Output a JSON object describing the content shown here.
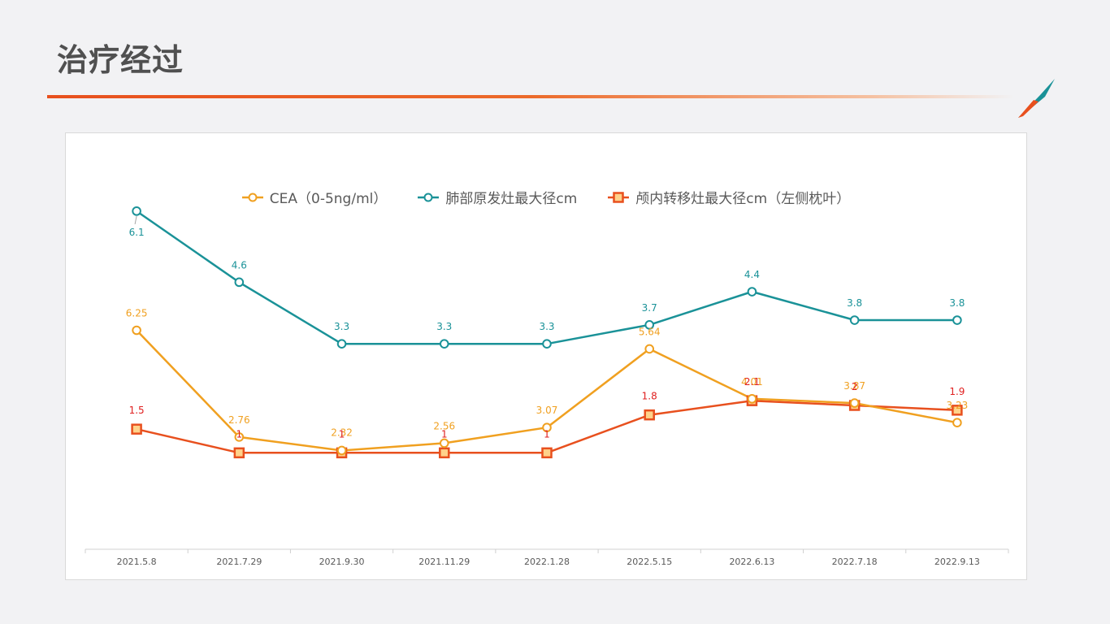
{
  "slide": {
    "title": "治疗经过"
  },
  "colors": {
    "cea": "#f0a020",
    "lung": "#1a9298",
    "brain": "#e8501e",
    "brain_label": "#e02020",
    "accent": "#e8501e"
  },
  "chart_data": {
    "type": "line",
    "categories": [
      "2021.5.8",
      "2021.7.29",
      "2021.9.30",
      "2021.11.29",
      "2022.1.28",
      "2022.5.15",
      "2022.6.13",
      "2022.7.18",
      "2022.9.13"
    ],
    "series": [
      {
        "name": "CEA（0-5ng/ml）",
        "values": [
          6.25,
          2.76,
          2.32,
          2.56,
          3.07,
          5.64,
          4.01,
          3.87,
          3.23
        ],
        "labels": [
          "6.25",
          "2.76",
          "2.32",
          "2.56",
          "3.07",
          "5.64",
          "4.01",
          "3.87",
          "3.23"
        ]
      },
      {
        "name": "肺部原发灶最大径cm",
        "values": [
          6.1,
          4.6,
          3.3,
          3.3,
          3.3,
          3.7,
          4.4,
          3.8,
          3.8
        ],
        "labels": [
          "6.1",
          "4.6",
          "3.3",
          "3.3",
          "3.3",
          "3.7",
          "4.4",
          "3.8",
          "3.8"
        ]
      },
      {
        "name": "颅内转移灶最大径cm（左侧枕叶）",
        "values": [
          1.5,
          1,
          1,
          1,
          1,
          1.8,
          2.1,
          2,
          1.9
        ],
        "labels": [
          "1.5",
          "1",
          "1",
          "1",
          "1",
          "1.8",
          "2.1",
          "2",
          "1.9"
        ]
      }
    ],
    "grid": false,
    "legend": "top"
  }
}
